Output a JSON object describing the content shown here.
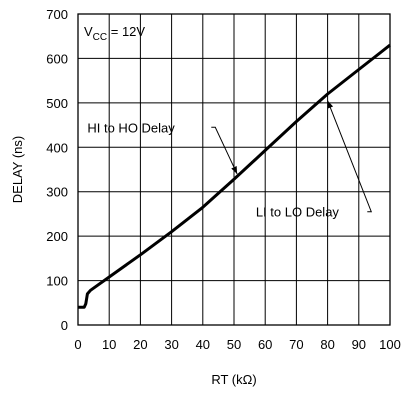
{
  "chart_data": {
    "type": "line",
    "title": "",
    "xlabel": "RT (kΩ)",
    "ylabel": "DELAY (ns)",
    "xlim": [
      0,
      100
    ],
    "ylim": [
      0,
      700
    ],
    "x_ticks": [
      0,
      10,
      20,
      30,
      40,
      50,
      60,
      70,
      80,
      90,
      100
    ],
    "y_ticks": [
      0,
      100,
      200,
      300,
      400,
      500,
      600,
      700
    ],
    "grid": true,
    "condition": {
      "prefix": "V",
      "subscript": "CC",
      "suffix": " = 12V"
    },
    "series": [
      {
        "name": "",
        "x": [
          0,
          2,
          2.5,
          3,
          4,
          10,
          20,
          30,
          40,
          50,
          60,
          70,
          80,
          90,
          100
        ],
        "y": [
          40,
          40,
          48,
          70,
          78,
          108,
          158,
          210,
          265,
          328,
          393,
          458,
          520,
          575,
          630
        ]
      }
    ],
    "annotations": [
      {
        "text": "HI to HO Delay",
        "tx": 3,
        "ty": 445,
        "corner_x": 44,
        "corner_y": 445,
        "tip_x": 51,
        "tip_y": 340
      },
      {
        "text": "LI to LO Delay",
        "tx": 57,
        "ty": 255,
        "corner_x": 94,
        "corner_y": 255,
        "tip_x": 80,
        "tip_y": 505
      }
    ]
  }
}
